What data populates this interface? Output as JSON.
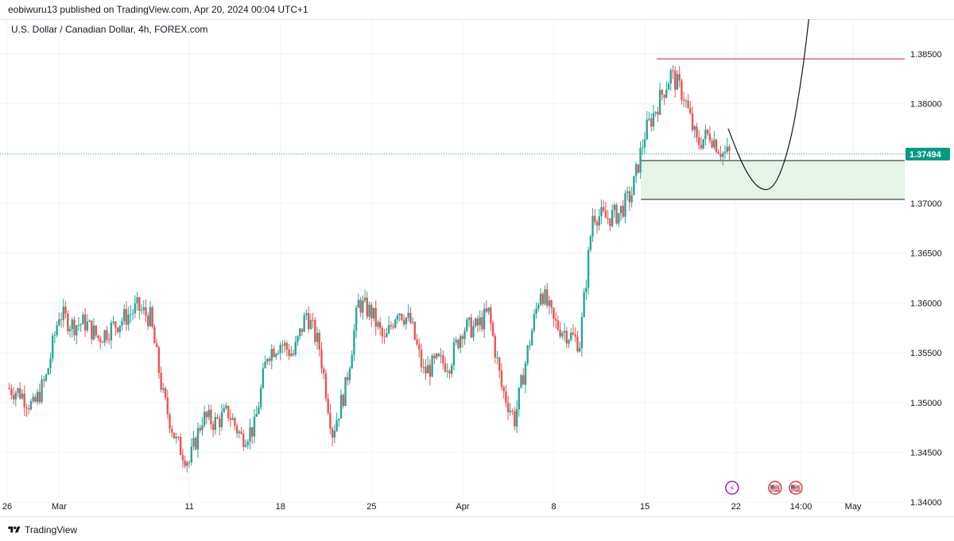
{
  "header": {
    "published_by": "eobiwuru13 published on TradingView.com, Apr 20, 2024 00:04 UTC+1"
  },
  "footer": {
    "brand": "TradingView"
  },
  "colors": {
    "up": "#26a69a",
    "down": "#ef5350",
    "grid": "#f0f3fa",
    "axis_text": "#131722",
    "price_label_bg": "#089981",
    "zone_fill": "#e6f4e8",
    "resistance_line": "#b22833",
    "projection_line": "#131722",
    "event_purple": "#9c27b0",
    "event_red": "#e53935"
  },
  "chart_data": {
    "type": "candlestick",
    "title": "U.S. Dollar / Canadian Dollar, 4h, FOREX.com",
    "symbol": "USDCAD",
    "timeframe": "4h",
    "y_ticks": [
      "1.38500",
      "1.38000",
      "1.37500",
      "1.37000",
      "1.36500",
      "1.36000",
      "1.35500",
      "1.35000",
      "1.34500",
      "1.34000"
    ],
    "y_tick_values": [
      1.385,
      1.38,
      1.375,
      1.37,
      1.365,
      1.36,
      1.355,
      1.35,
      1.345,
      1.34
    ],
    "ylim": [
      1.3385,
      1.3885
    ],
    "x_ticks": [
      {
        "label": "26",
        "day": 0
      },
      {
        "label": "Mar",
        "day": 4
      },
      {
        "label": "11",
        "day": 14
      },
      {
        "label": "18",
        "day": 21
      },
      {
        "label": "25",
        "day": 28
      },
      {
        "label": "Apr",
        "day": 35
      },
      {
        "label": "8",
        "day": 42
      },
      {
        "label": "15",
        "day": 49
      },
      {
        "label": "22",
        "day": 56
      },
      {
        "label": "14:00",
        "day": 61
      },
      {
        "label": "May",
        "day": 65
      }
    ],
    "last_price": "1.37494",
    "last_price_value": 1.37494,
    "close_path": [
      [
        0,
        1.3515
      ],
      [
        1,
        1.351
      ],
      [
        2,
        1.3495
      ],
      [
        3,
        1.3525
      ],
      [
        4,
        1.359
      ],
      [
        5,
        1.3578
      ],
      [
        6,
        1.358
      ],
      [
        7,
        1.3565
      ],
      [
        8,
        1.3575
      ],
      [
        9,
        1.3585
      ],
      [
        10,
        1.3595
      ],
      [
        11,
        1.3585
      ],
      [
        12,
        1.3505
      ],
      [
        13,
        1.346
      ],
      [
        14,
        1.344
      ],
      [
        15,
        1.3485
      ],
      [
        16,
        1.348
      ],
      [
        17,
        1.349
      ],
      [
        18,
        1.3465
      ],
      [
        19,
        1.3475
      ],
      [
        20,
        1.355
      ],
      [
        21,
        1.356
      ],
      [
        22,
        1.3548
      ],
      [
        23,
        1.359
      ],
      [
        24,
        1.3555
      ],
      [
        25,
        1.347
      ],
      [
        26,
        1.3515
      ],
      [
        27,
        1.36
      ],
      [
        28,
        1.359
      ],
      [
        29,
        1.356
      ],
      [
        30,
        1.3595
      ],
      [
        31,
        1.358
      ],
      [
        32,
        1.353
      ],
      [
        33,
        1.354
      ],
      [
        34,
        1.354
      ],
      [
        35,
        1.3575
      ],
      [
        36,
        1.3575
      ],
      [
        37,
        1.359
      ],
      [
        38,
        1.3515
      ],
      [
        39,
        1.3483
      ],
      [
        40,
        1.3552
      ],
      [
        41,
        1.3615
      ],
      [
        42,
        1.358
      ],
      [
        43,
        1.357
      ],
      [
        44,
        1.356
      ],
      [
        45,
        1.369
      ],
      [
        46,
        1.3685
      ],
      [
        47,
        1.369
      ],
      [
        48,
        1.371
      ],
      [
        49,
        1.377
      ],
      [
        50,
        1.38
      ],
      [
        51,
        1.383
      ],
      [
        52,
        1.3808
      ],
      [
        53,
        1.376
      ],
      [
        54,
        1.377
      ],
      [
        55,
        1.375
      ],
      [
        55.5,
        1.37494
      ]
    ],
    "annotations": {
      "resistance": {
        "value": 1.3845,
        "from_day": 49.9
      },
      "demand_zone": {
        "top": 1.3743,
        "bottom": 1.3704,
        "from_day": 48.7
      },
      "projection_curve": [
        [
          55.4,
          1.3775
        ],
        [
          56.6,
          1.3735
        ],
        [
          57.8,
          1.3713
        ],
        [
          59.0,
          1.3715
        ],
        [
          60.2,
          1.376
        ],
        [
          61.1,
          1.383
        ],
        [
          61.6,
          1.3885
        ]
      ]
    },
    "events": [
      {
        "type": "lightning",
        "day": 55.7,
        "glyph": "⚡"
      },
      {
        "type": "us-flag",
        "day": 59.0,
        "glyph": "🇺🇸"
      },
      {
        "type": "us-flag",
        "day": 60.6,
        "glyph": "🇺🇸"
      }
    ]
  }
}
